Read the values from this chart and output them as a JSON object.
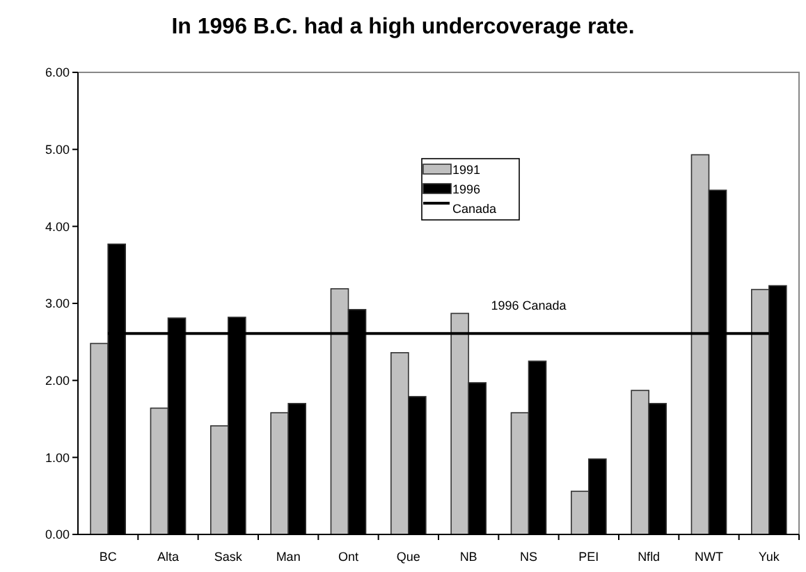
{
  "chart_data": {
    "type": "bar",
    "title": "In 1996 B.C. had a high undercoverage rate.",
    "categories": [
      "BC",
      "Alta",
      "Sask",
      "Man",
      "Ont",
      "Que",
      "NB",
      "NS",
      "PEI",
      "Nfld",
      "NWT",
      "Yuk"
    ],
    "series": [
      {
        "name": "1991",
        "color": "#c0c0c0",
        "values": [
          2.48,
          1.64,
          1.41,
          1.58,
          3.19,
          2.36,
          2.87,
          1.58,
          0.56,
          1.87,
          4.93,
          3.18
        ]
      },
      {
        "name": "1996",
        "color": "#000000",
        "values": [
          3.77,
          2.81,
          2.82,
          1.7,
          2.92,
          1.79,
          1.97,
          2.25,
          0.98,
          1.7,
          4.47,
          3.23
        ]
      }
    ],
    "ref_lines": [
      {
        "axis": "y",
        "value": 2.61,
        "label": "Canada",
        "color": "#000000"
      }
    ],
    "annotations": [
      {
        "text": "1996 Canada",
        "x": "NS",
        "y": 2.61
      }
    ],
    "ylim": [
      0,
      6
    ],
    "yticks": [
      {
        "value": 0,
        "label": "0.00"
      },
      {
        "value": 1,
        "label": "1.00"
      },
      {
        "value": 2,
        "label": "2.00"
      },
      {
        "value": 3,
        "label": "3.00"
      },
      {
        "value": 4,
        "label": "4.00"
      },
      {
        "value": 5,
        "label": "5.00"
      },
      {
        "value": 6,
        "label": "6.00"
      }
    ],
    "grid": false,
    "legend": "top"
  }
}
